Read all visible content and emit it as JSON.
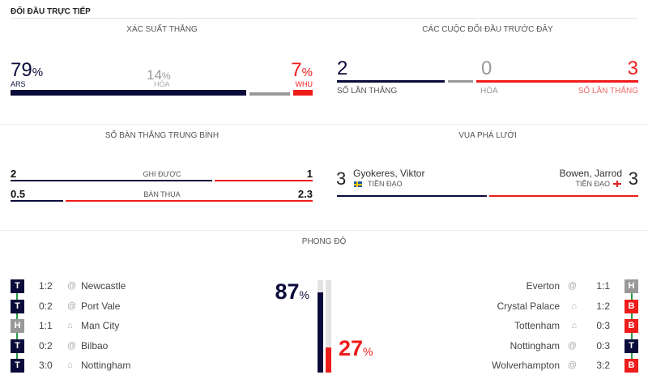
{
  "header": {
    "title": "ĐỐI ĐẦU TRỰC TIẾP"
  },
  "win_prob": {
    "title": "XÁC SUẤT THẮNG",
    "home": {
      "value": "79",
      "pct": "%",
      "label": "ARS",
      "fraction": 0.79
    },
    "draw": {
      "value": "14",
      "pct": "%",
      "label": "HÒA",
      "fraction": 0.14
    },
    "away": {
      "value": "7",
      "pct": "%",
      "label": "WHU",
      "fraction": 0.07
    }
  },
  "h2h": {
    "title": "CÁC CUỘC ĐỐI ĐẦU TRƯỚC ĐÂY",
    "home": {
      "value": "2",
      "label": "SỐ LẦN THẮNG"
    },
    "draw": {
      "value": "0",
      "label": "HÒA"
    },
    "away": {
      "value": "3",
      "label": "SỐ LẦN THẮNG"
    }
  },
  "avg_goals": {
    "title": "SỐ BÀN THẮNG TRUNG BÌNH",
    "rows": [
      {
        "label": "GHI ĐƯỢC",
        "home": "2",
        "away": "1"
      },
      {
        "label": "BÀN THUA",
        "home": "0.5",
        "away": "2.3"
      }
    ]
  },
  "top_scorer": {
    "title": "VUA PHÁ LƯỚI",
    "home": {
      "goals": "3",
      "name": "Gyokeres, Viktor",
      "position": "TIỀN ĐẠO",
      "flag": "sweden-flag"
    },
    "away": {
      "goals": "3",
      "name": "Bowen, Jarrod",
      "position": "TIỀN ĐẠO",
      "flag": "england-flag"
    }
  },
  "form": {
    "title": "PHONG ĐỘ",
    "home_pct": {
      "value": "87",
      "pct": "%",
      "fraction": 0.87
    },
    "away_pct": {
      "value": "27",
      "pct": "%",
      "fraction": 0.27
    },
    "home": [
      {
        "result": "T",
        "score": "1:2",
        "venue": "@",
        "team": "Newcastle"
      },
      {
        "result": "T",
        "score": "0:2",
        "venue": "@",
        "team": "Port Vale"
      },
      {
        "result": "H",
        "score": "1:1",
        "venue": "home",
        "team": "Man City"
      },
      {
        "result": "T",
        "score": "0:2",
        "venue": "@",
        "team": "Bilbao"
      },
      {
        "result": "T",
        "score": "3:0",
        "venue": "home",
        "team": "Nottingham"
      }
    ],
    "away": [
      {
        "result": "H",
        "score": "1:1",
        "venue": "@",
        "team": "Everton"
      },
      {
        "result": "B",
        "score": "1:2",
        "venue": "home",
        "team": "Crystal Palace"
      },
      {
        "result": "B",
        "score": "0:3",
        "venue": "home",
        "team": "Tottenham"
      },
      {
        "result": "T",
        "score": "0:3",
        "venue": "@",
        "team": "Nottingham"
      },
      {
        "result": "B",
        "score": "3:2",
        "venue": "@",
        "team": "Wolverhampton"
      }
    ]
  },
  "colors": {
    "home": "#0b0b3b",
    "away": "#ef1c1c",
    "draw": "#999999",
    "connector": "#2a9d4a"
  }
}
